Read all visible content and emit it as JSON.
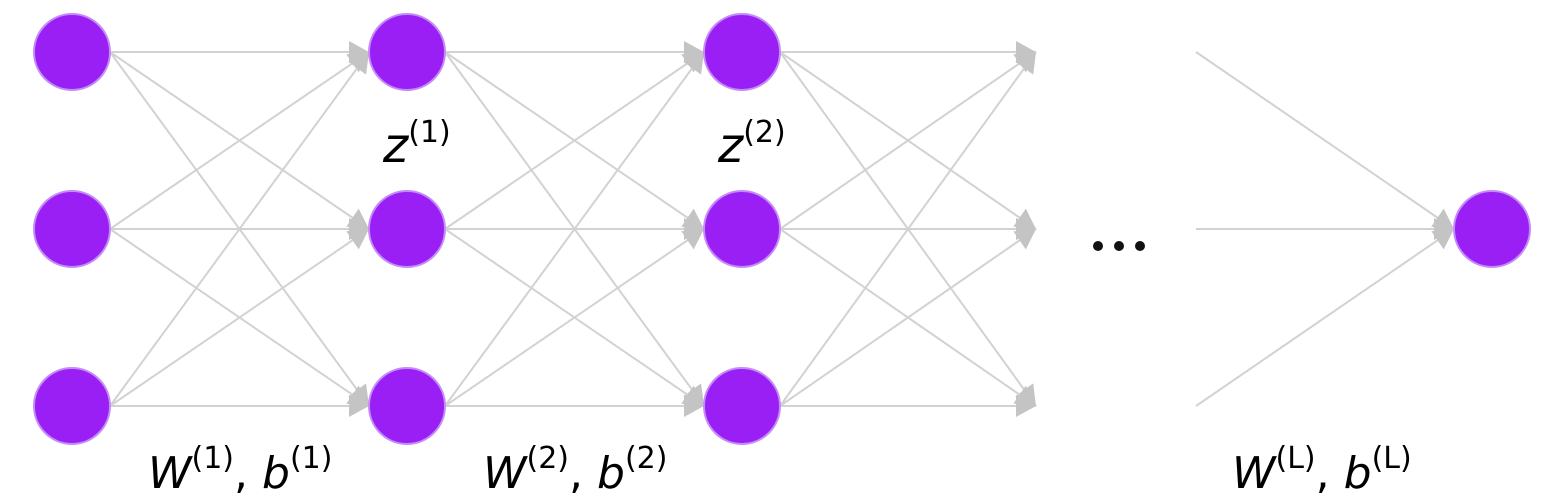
{
  "labels": {
    "z1": {
      "symbol": "z",
      "superscript": "(1)"
    },
    "z2": {
      "symbol": "z",
      "superscript": "(2)"
    },
    "wb1": {
      "w": "W",
      "w_sup": "(1)",
      "sep": ", ",
      "b": "b",
      "b_sup": "(1)"
    },
    "wb2": {
      "w": "W",
      "w_sup": "(2)",
      "sep": ", ",
      "b": "b",
      "b_sup": "(2)"
    },
    "wbL": {
      "w": "W",
      "w_sup": "(L)",
      "sep": ", ",
      "b": "b",
      "b_sup": "(L)"
    }
  },
  "network": {
    "layers": [
      {
        "name": "input",
        "neurons": 3
      },
      {
        "name": "hidden-1",
        "neurons": 3
      },
      {
        "name": "hidden-2",
        "neurons": 3
      },
      {
        "name": "output",
        "neurons": 1
      }
    ],
    "ellipsis_between": [
      "hidden-2",
      "output"
    ],
    "colors": {
      "neuron": "#9a1ff5",
      "edge": "#d2d2d2"
    }
  }
}
